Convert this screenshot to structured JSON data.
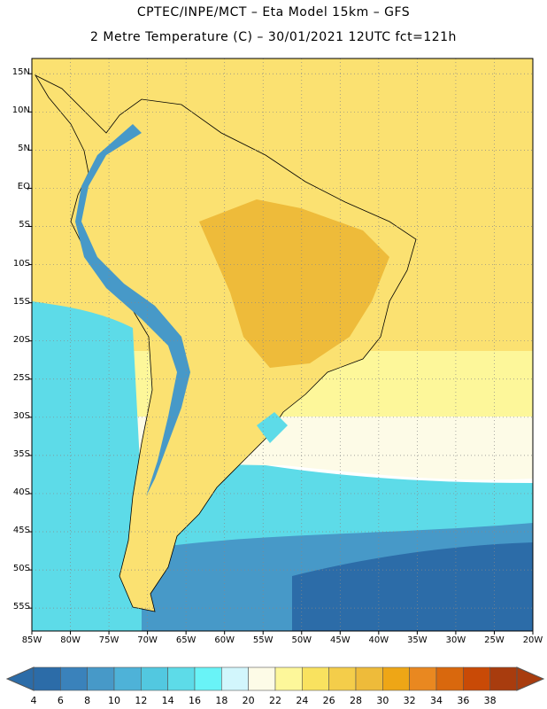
{
  "header": {
    "line1": "CPTEC/INPE/MCT –  Eta Model 15km – GFS",
    "line2": "2 Metre Temperature (C) – 30/01/2021 12UTC fct=121h"
  },
  "map": {
    "lat_labels": [
      "15N",
      "10N",
      "5N",
      "EQ",
      "5S",
      "10S",
      "15S",
      "20S",
      "25S",
      "30S",
      "35S",
      "40S",
      "45S",
      "50S",
      "55S"
    ],
    "lon_labels": [
      "85W",
      "80W",
      "75W",
      "70W",
      "65W",
      "60W",
      "55W",
      "50W",
      "45W",
      "40W",
      "35W",
      "30W",
      "25W",
      "20W"
    ],
    "lon_range": [
      -85,
      -20
    ],
    "lat_range": [
      -58,
      17
    ],
    "grid": true
  },
  "colorbar": {
    "labels": [
      "4",
      "6",
      "8",
      "10",
      "12",
      "14",
      "16",
      "18",
      "20",
      "22",
      "24",
      "26",
      "28",
      "30",
      "32",
      "34",
      "36",
      "38"
    ],
    "colors": [
      "#2c6ca8",
      "#3a82bb",
      "#4799c8",
      "#4eb2d8",
      "#52c8e0",
      "#5ddbe8",
      "#69f3f7",
      "#d2f6fc",
      "#fdfbe7",
      "#fdf79a",
      "#f9e25f",
      "#f4cd4a",
      "#eebb3a",
      "#eea616",
      "#e98820",
      "#d9680d",
      "#c94a06",
      "#a83c0e"
    ]
  },
  "colors": {
    "ocean_tropical": "#fbe171",
    "ocean_warm": "#fdf79a",
    "ocean_mild": "#fdfbe7",
    "ocean_cool": "#5ddbe8",
    "ocean_cold": "#4799c8",
    "ocean_coldest": "#2c6ca8",
    "land_hot": "#eebb3a",
    "andes": "#4799c8"
  }
}
